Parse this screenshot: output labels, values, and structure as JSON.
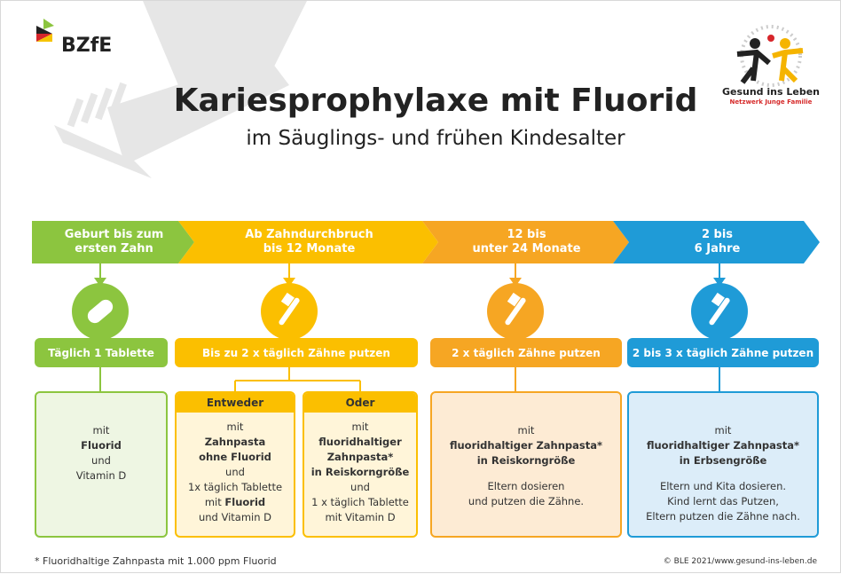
{
  "header": {
    "logo": "BZfE",
    "title": "Kariesprophylaxe mit Fluorid",
    "subtitle": "im Säuglings- und frühen Kindesalter",
    "partner_logo": {
      "name": "Gesund ins Leben",
      "tagline": "Netzwerk Junge Familie"
    }
  },
  "stages": [
    {
      "heading": [
        "Geburt bis zum",
        "ersten Zahn"
      ],
      "color": "#8cc53f",
      "tint": "#eef6e3",
      "icon": "pill",
      "action": "Täglich 1 Tablette",
      "panels": [
        {
          "paragraphs": [
            [
              [
                {
                  "t": "mit"
                }
              ],
              [
                {
                  "t": "Fluorid",
                  "b": true
                }
              ],
              [
                {
                  "t": "und"
                }
              ],
              [
                {
                  "t": "Vitamin D"
                }
              ]
            ]
          ]
        }
      ]
    },
    {
      "heading": [
        "Ab Zahndurchbruch",
        "bis 12 Monate"
      ],
      "color": "#fbbf00",
      "tint": "#fff5d9",
      "icon": "brush",
      "action": "Bis zu 2 x täglich Zähne putzen",
      "panels": [
        {
          "label": "Entweder",
          "paragraphs": [
            [
              [
                {
                  "t": "mit"
                }
              ],
              [
                {
                  "t": "Zahnpasta",
                  "b": true
                }
              ],
              [
                {
                  "t": "ohne Fluorid",
                  "b": true
                }
              ],
              [
                {
                  "t": "und"
                }
              ],
              [
                {
                  "t": "1x täglich Tablette"
                }
              ],
              [
                {
                  "t": "mit"
                },
                {
                  "t": "Fluorid",
                  "b": true
                }
              ],
              [
                {
                  "t": "und Vitamin D"
                }
              ]
            ]
          ]
        },
        {
          "label": "Oder",
          "paragraphs": [
            [
              [
                {
                  "t": "mit"
                }
              ],
              [
                {
                  "t": "fluoridhaltiger",
                  "b": true
                }
              ],
              [
                {
                  "t": "Zahnpasta*",
                  "b": true
                }
              ],
              [
                {
                  "t": "in Reiskorngröße",
                  "b": true
                }
              ],
              [
                {
                  "t": "und"
                }
              ],
              [
                {
                  "t": "1 x täglich Tablette"
                }
              ],
              [
                {
                  "t": "mit Vitamin D"
                }
              ]
            ]
          ]
        }
      ]
    },
    {
      "heading": [
        "12 bis",
        "unter 24 Monate"
      ],
      "color": "#f6a623",
      "tint": "#fdebd4",
      "icon": "brush",
      "action": "2 x täglich Zähne putzen",
      "panels": [
        {
          "paragraphs": [
            [
              [
                {
                  "t": "mit"
                }
              ],
              [
                {
                  "t": "fluoridhaltiger Zahnpasta*",
                  "b": true
                }
              ],
              [
                {
                  "t": "in Reiskorngröße",
                  "b": true
                }
              ]
            ],
            [
              [
                {
                  "t": "Eltern dosieren"
                }
              ],
              [
                {
                  "t": "und putzen die Zähne."
                }
              ]
            ]
          ]
        }
      ]
    },
    {
      "heading": [
        "2 bis",
        "6 Jahre"
      ],
      "color": "#1f9bd7",
      "tint": "#dcedf9",
      "icon": "brush",
      "action": "2 bis 3 x täglich Zähne putzen",
      "panels": [
        {
          "paragraphs": [
            [
              [
                {
                  "t": "mit"
                }
              ],
              [
                {
                  "t": "fluoridhaltiger Zahnpasta*",
                  "b": true
                }
              ],
              [
                {
                  "t": "in Erbsengröße",
                  "b": true
                }
              ]
            ],
            [
              [
                {
                  "t": "Eltern und Kita dosieren."
                }
              ],
              [
                {
                  "t": "Kind lernt das Putzen,"
                }
              ],
              [
                {
                  "t": "Eltern putzen die Zähne nach."
                }
              ]
            ]
          ]
        }
      ]
    }
  ],
  "footer": {
    "note": "* Fluoridhaltige Zahnpasta mit 1.000 ppm Fluorid",
    "credit": "© BLE 2021/www.gesund-ins-leben.de"
  }
}
